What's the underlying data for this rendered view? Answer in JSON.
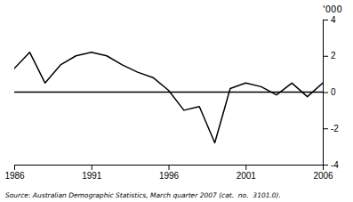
{
  "chart_data": {
    "type": "line",
    "ylabel": "'000",
    "source": "Source: Australian Demographic Statistics, March quarter 2007 (cat.  no.  3101.0).",
    "x": [
      1986,
      1987,
      1988,
      1989,
      1990,
      1991,
      1992,
      1993,
      1994,
      1995,
      1996,
      1997,
      1998,
      1999,
      2000,
      2001,
      2002,
      2003,
      2004,
      2005,
      2006
    ],
    "values": [
      1.3,
      2.2,
      0.5,
      1.5,
      2.0,
      2.2,
      2.0,
      1.5,
      1.1,
      0.8,
      0.1,
      -1.0,
      -0.8,
      -2.8,
      0.2,
      0.5,
      0.3,
      -0.15,
      0.5,
      -0.25,
      0.5
    ],
    "color": "#000000",
    "xlim": [
      1986,
      2006
    ],
    "ylim": [
      -4,
      4
    ],
    "xticks": [
      1986,
      1991,
      1996,
      2001,
      2006
    ],
    "yticks": [
      -4,
      -2,
      0,
      2,
      4
    ],
    "reference_line": 0,
    "grid": false
  }
}
